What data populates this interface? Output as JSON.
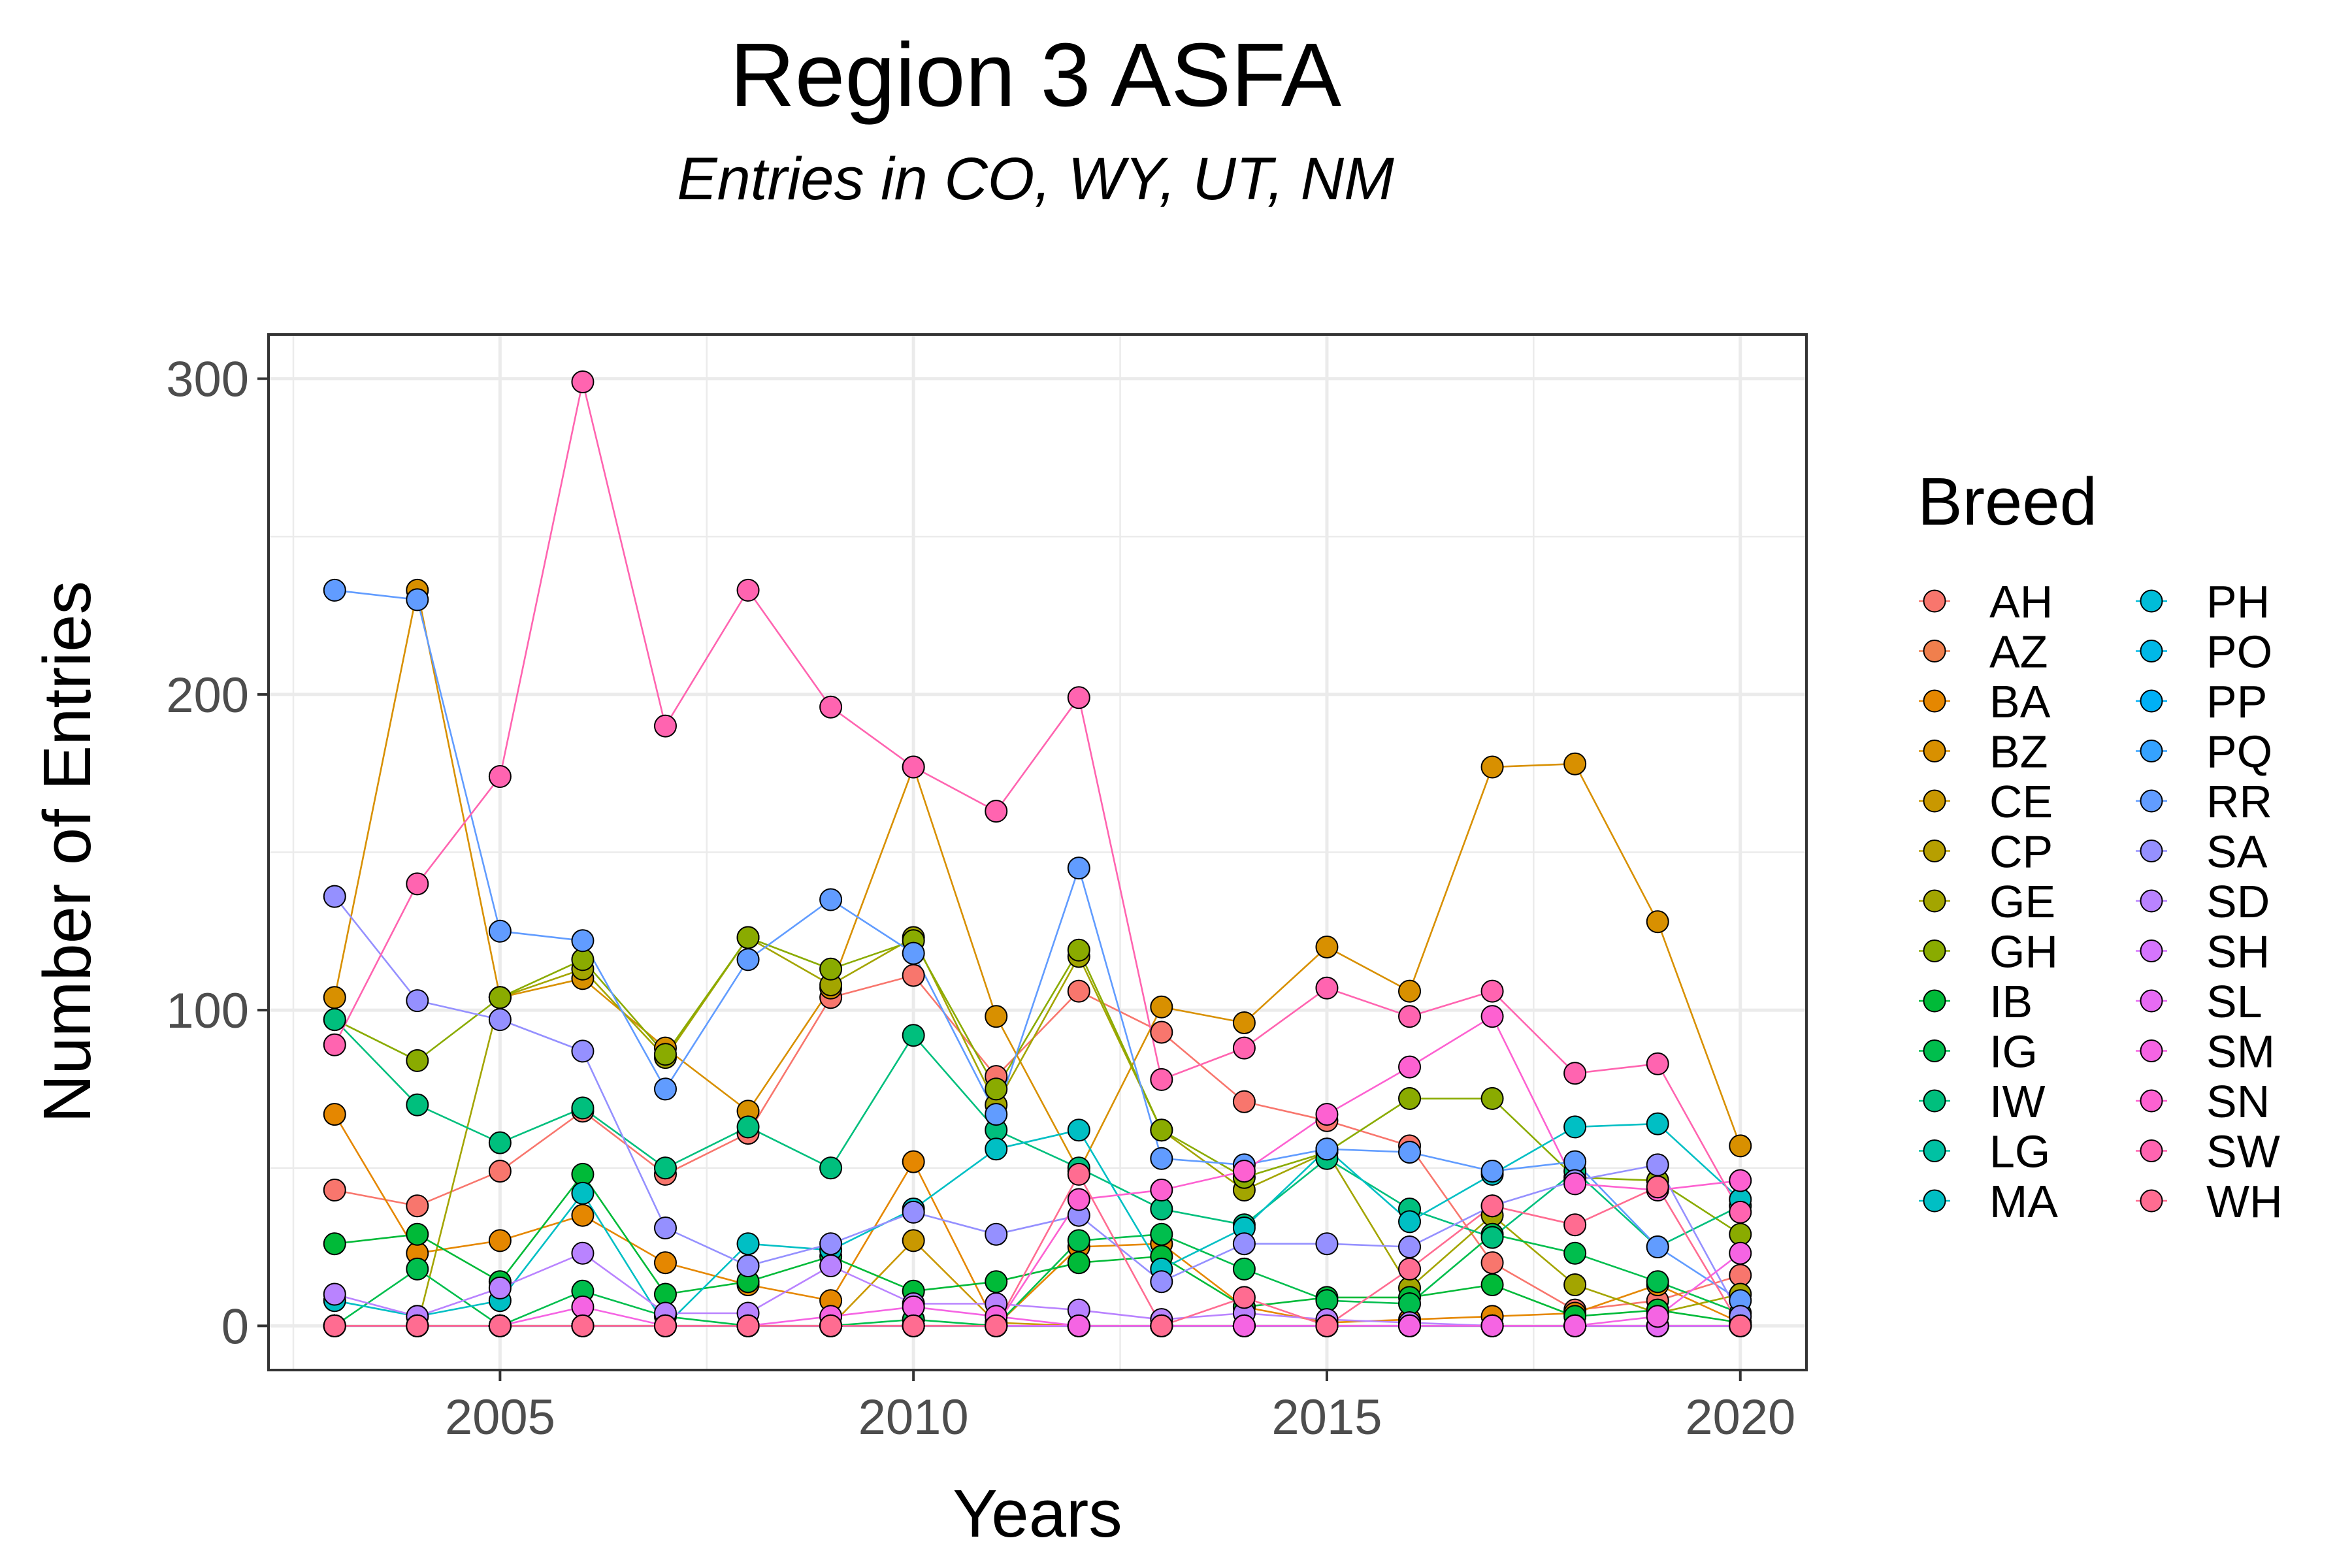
{
  "chart_data": {
    "type": "line",
    "title": "Region 3 ASFA",
    "subtitle": "Entries in CO, WY, UT, NM",
    "xlabel": "Years",
    "ylabel": "Number of Entries",
    "xlim": [
      2002.2,
      2020.8
    ],
    "ylim": [
      -14,
      314
    ],
    "x_ticks": [
      2005,
      2010,
      2015,
      2020
    ],
    "y_ticks": [
      0,
      100,
      200,
      300
    ],
    "grid": true,
    "legend_title": "Breed",
    "legend_position": "right",
    "x": [
      2003,
      2004,
      2005,
      2006,
      2007,
      2008,
      2009,
      2010,
      2011,
      2012,
      2013,
      2014,
      2015,
      2016,
      2017,
      2018,
      2019,
      2020
    ],
    "series": [
      {
        "name": "AH",
        "color": "#F8766D",
        "values": [
          43,
          38,
          49,
          68,
          48,
          61,
          104,
          111,
          79,
          106,
          93,
          71,
          65,
          57,
          20,
          5,
          8,
          16
        ]
      },
      {
        "name": "AZ",
        "color": "#F07F4D",
        "values": [
          0,
          0,
          0,
          0,
          0,
          0,
          0,
          0,
          0,
          0,
          0,
          0,
          0,
          0,
          0,
          0,
          0,
          0
        ]
      },
      {
        "name": "BA",
        "color": "#E58700",
        "values": [
          67,
          23,
          27,
          35,
          20,
          13,
          8,
          52,
          0,
          25,
          26,
          6,
          1,
          2,
          3,
          4,
          13,
          1
        ]
      },
      {
        "name": "BZ",
        "color": "#D89000",
        "values": [
          104,
          233,
          104,
          110,
          88,
          68,
          107,
          177,
          98,
          49,
          101,
          96,
          120,
          106,
          177,
          178,
          128,
          57
        ]
      },
      {
        "name": "CE",
        "color": "#C99800",
        "values": [
          0,
          0,
          0,
          0,
          0,
          0,
          0,
          27,
          1,
          0,
          0,
          0,
          0,
          0,
          0,
          0,
          0,
          0
        ]
      },
      {
        "name": "CP",
        "color": "#B79F00",
        "values": [
          0,
          0,
          0,
          0,
          0,
          0,
          0,
          0,
          0,
          0,
          0,
          0,
          0,
          0,
          0,
          0,
          0,
          0
        ]
      },
      {
        "name": "GE",
        "color": "#A3A500",
        "values": [
          0,
          0,
          104,
          113,
          85,
          123,
          108,
          123,
          70,
          117,
          62,
          43,
          55,
          12,
          35,
          13,
          4,
          10
        ]
      },
      {
        "name": "GH",
        "color": "#8AAB00",
        "values": [
          97,
          84,
          104,
          116,
          86,
          123,
          113,
          122,
          75,
          119,
          62,
          47,
          55,
          72,
          72,
          47,
          46,
          29
        ]
      },
      {
        "name": "IB",
        "color": "#00BA38",
        "values": [
          26,
          29,
          14,
          48,
          10,
          14,
          22,
          11,
          14,
          20,
          22,
          6,
          9,
          9,
          13,
          3,
          5,
          1
        ]
      },
      {
        "name": "IG",
        "color": "#00BE4D",
        "values": [
          0,
          18,
          0,
          11,
          3,
          0,
          0,
          2,
          0,
          27,
          29,
          18,
          8,
          7,
          29,
          23,
          14,
          4
        ]
      },
      {
        "name": "IW",
        "color": "#00BF7D",
        "values": [
          97,
          70,
          58,
          69,
          50,
          63,
          50,
          92,
          62,
          50,
          37,
          32,
          53,
          37,
          28,
          49,
          25,
          38
        ]
      },
      {
        "name": "LG",
        "color": "#00C1A3",
        "values": [
          0,
          0,
          0,
          0,
          0,
          0,
          0,
          0,
          0,
          0,
          0,
          0,
          0,
          0,
          0,
          0,
          0,
          0
        ]
      },
      {
        "name": "MA",
        "color": "#00BFC4",
        "values": [
          8,
          3,
          8,
          42,
          0,
          26,
          24,
          37,
          56,
          62,
          18,
          31,
          56,
          33,
          48,
          63,
          64,
          40
        ]
      },
      {
        "name": "PH",
        "color": "#00BCD8",
        "values": [
          0,
          0,
          0,
          0,
          0,
          0,
          0,
          0,
          0,
          0,
          0,
          0,
          0,
          0,
          0,
          0,
          0,
          0
        ]
      },
      {
        "name": "PO",
        "color": "#00B8E7",
        "values": [
          0,
          0,
          0,
          0,
          0,
          0,
          0,
          0,
          0,
          0,
          0,
          0,
          0,
          0,
          0,
          0,
          0,
          0
        ]
      },
      {
        "name": "PP",
        "color": "#00B0F6",
        "values": [
          0,
          0,
          0,
          0,
          0,
          0,
          0,
          0,
          0,
          0,
          0,
          0,
          0,
          0,
          0,
          0,
          0,
          0
        ]
      },
      {
        "name": "PQ",
        "color": "#35A2FF",
        "values": [
          0,
          0,
          0,
          0,
          0,
          0,
          0,
          0,
          0,
          0,
          0,
          0,
          0,
          0,
          0,
          0,
          0,
          0
        ]
      },
      {
        "name": "RR",
        "color": "#619CFF",
        "values": [
          233,
          230,
          125,
          122,
          75,
          116,
          135,
          118,
          67,
          145,
          53,
          51,
          56,
          55,
          49,
          52,
          25,
          8
        ]
      },
      {
        "name": "SA",
        "color": "#9590FF",
        "values": [
          136,
          103,
          97,
          87,
          31,
          19,
          26,
          36,
          29,
          35,
          14,
          26,
          26,
          25,
          38,
          46,
          51,
          3
        ]
      },
      {
        "name": "SD",
        "color": "#B983FF",
        "values": [
          10,
          3,
          12,
          23,
          4,
          4,
          19,
          7,
          7,
          5,
          2,
          4,
          2,
          1,
          0,
          0,
          0,
          0
        ]
      },
      {
        "name": "SH",
        "color": "#D575FE",
        "values": [
          0,
          0,
          0,
          0,
          0,
          0,
          0,
          0,
          0,
          0,
          0,
          0,
          0,
          0,
          0,
          0,
          0,
          0
        ]
      },
      {
        "name": "SL",
        "color": "#E76BF3",
        "values": [
          0,
          0,
          0,
          0,
          0,
          0,
          0,
          0,
          0,
          0,
          0,
          0,
          0,
          0,
          0,
          0,
          0,
          0
        ]
      },
      {
        "name": "SM",
        "color": "#F564E3",
        "values": [
          0,
          0,
          0,
          6,
          0,
          0,
          3,
          6,
          3,
          0,
          0,
          0,
          0,
          0,
          0,
          0,
          3,
          23
        ]
      },
      {
        "name": "SN",
        "color": "#FD61D1",
        "values": [
          0,
          0,
          0,
          0,
          0,
          0,
          0,
          0,
          0,
          40,
          43,
          49,
          67,
          82,
          98,
          45,
          43,
          46
        ]
      },
      {
        "name": "SW",
        "color": "#FF64B0",
        "values": [
          89,
          140,
          174,
          299,
          190,
          233,
          196,
          177,
          163,
          199,
          78,
          88,
          107,
          98,
          106,
          80,
          83,
          36
        ]
      },
      {
        "name": "WH",
        "color": "#FF6C91",
        "values": [
          0,
          0,
          0,
          0,
          0,
          0,
          0,
          0,
          0,
          48,
          0,
          9,
          0,
          18,
          38,
          32,
          44,
          0
        ]
      }
    ]
  }
}
